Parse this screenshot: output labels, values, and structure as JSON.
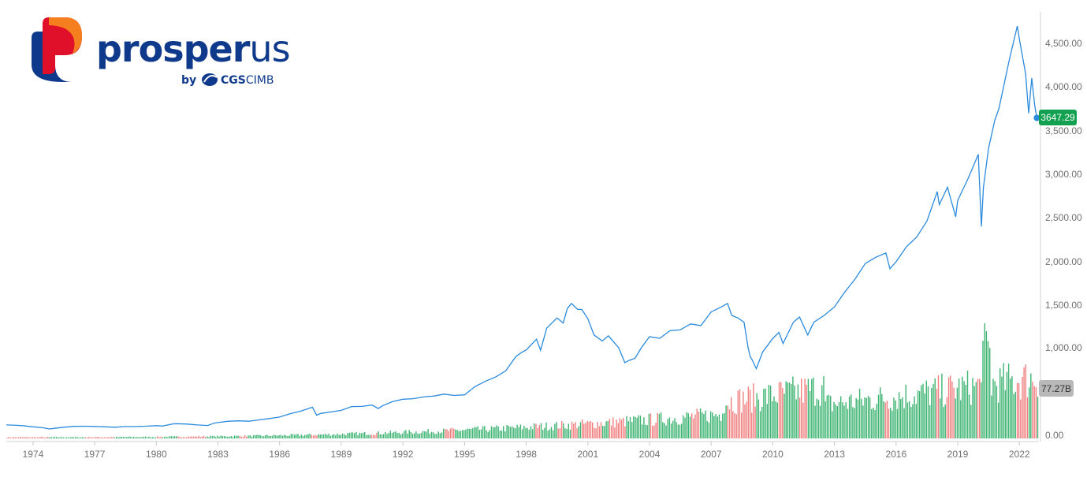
{
  "brand": {
    "name_part1": "prosper",
    "name_part2": "us",
    "by_label": "by",
    "partner_part1": "CGS",
    "partner_part2": "CIMB",
    "colors": {
      "navy": "#0f3a8c",
      "red": "#e0102a",
      "orange": "#f57e1f"
    }
  },
  "chart_data": {
    "type": "line",
    "colors": {
      "line": "#2a8ade",
      "volume_up": "#3cb371",
      "volume_down": "#f08080",
      "price_badge": "#12a150",
      "volume_badge": "#b8b8b8"
    },
    "price_axis": {
      "ylim": [
        0,
        4800
      ],
      "ticks": [
        "0.00",
        "1,000.00",
        "1,500.00",
        "2,000.00",
        "2,500.00",
        "3,000.00",
        "3,500.00",
        "4,000.00",
        "4,500.00"
      ],
      "tick_values": [
        0,
        1000,
        1500,
        2000,
        2500,
        3000,
        3500,
        4000,
        4500
      ]
    },
    "x_axis": {
      "range": [
        1972.7,
        2022.95
      ],
      "ticks": [
        "1974",
        "1977",
        "1980",
        "1983",
        "1986",
        "1989",
        "1992",
        "1995",
        "1998",
        "2001",
        "2004",
        "2007",
        "2010",
        "2013",
        "2016",
        "2019",
        "2022"
      ],
      "tick_values": [
        1974,
        1977,
        1980,
        1983,
        1986,
        1989,
        1992,
        1995,
        1998,
        2001,
        2004,
        2007,
        2010,
        2013,
        2016,
        2019,
        2022
      ]
    },
    "series": [
      {
        "values_x": [
          1972.7,
          1973.0,
          1973.5,
          1974.0,
          1974.5,
          1974.8,
          1975.0,
          1975.5,
          1976.0,
          1976.5,
          1977.0,
          1977.5,
          1978.0,
          1978.5,
          1979.0,
          1979.5,
          1980.0,
          1980.3,
          1980.8,
          1981.0,
          1981.5,
          1982.0,
          1982.5,
          1982.8,
          1983.0,
          1983.5,
          1984.0,
          1984.5,
          1985.0,
          1985.5,
          1986.0,
          1986.5,
          1987.0,
          1987.6,
          1987.8,
          1988.0,
          1988.5,
          1989.0,
          1989.5,
          1990.0,
          1990.5,
          1990.8,
          1991.0,
          1991.5,
          1992.0,
          1992.5,
          1993.0,
          1993.5,
          1994.0,
          1994.5,
          1995.0,
          1995.5,
          1996.0,
          1996.5,
          1997.0,
          1997.5,
          1997.8,
          1998.0,
          1998.5,
          1998.7,
          1999.0,
          1999.5,
          1999.8,
          2000.0,
          2000.2,
          2000.5,
          2000.7,
          2001.0,
          2001.3,
          2001.7,
          2002.0,
          2002.5,
          2002.8,
          2003.0,
          2003.3,
          2003.6,
          2004.0,
          2004.5,
          2005.0,
          2005.5,
          2006.0,
          2006.5,
          2007.0,
          2007.5,
          2007.8,
          2008.0,
          2008.3,
          2008.6,
          2008.8,
          2008.9,
          2009.0,
          2009.2,
          2009.5,
          2010.0,
          2010.3,
          2010.5,
          2011.0,
          2011.3,
          2011.7,
          2012.0,
          2012.5,
          2013.0,
          2013.5,
          2014.0,
          2014.5,
          2015.0,
          2015.5,
          2015.7,
          2016.0,
          2016.5,
          2017.0,
          2017.5,
          2018.0,
          2018.1,
          2018.5,
          2018.9,
          2019.0,
          2019.5,
          2020.0,
          2020.15,
          2020.25,
          2020.5,
          2020.8,
          2021.0,
          2021.5,
          2021.9,
          2022.0,
          2022.3,
          2022.45,
          2022.6,
          2022.75,
          2022.85
        ],
        "values_y": [
          118,
          116,
          110,
          96,
          86,
          72,
          78,
          92,
          102,
          104,
          101,
          96,
          92,
          100,
          100,
          104,
          110,
          105,
          130,
          132,
          128,
          118,
          112,
          138,
          145,
          160,
          165,
          160,
          176,
          191,
          208,
          246,
          274,
          321,
          229,
          250,
          267,
          285,
          328,
          330,
          345,
          305,
          336,
          385,
          412,
          418,
          438,
          448,
          470,
          455,
          462,
          555,
          615,
          665,
          735,
          900,
          950,
          975,
          1100,
          972,
          1230,
          1350,
          1290,
          1460,
          1520,
          1450,
          1450,
          1340,
          1150,
          1080,
          1140,
          1000,
          830,
          855,
          880,
          1000,
          1130,
          1110,
          1200,
          1210,
          1280,
          1260,
          1420,
          1480,
          1520,
          1380,
          1350,
          1300,
          1000,
          900,
          860,
          760,
          950,
          1110,
          1180,
          1050,
          1300,
          1360,
          1150,
          1300,
          1380,
          1480,
          1650,
          1800,
          1980,
          2050,
          2100,
          1920,
          2000,
          2170,
          2280,
          2460,
          2800,
          2650,
          2850,
          2510,
          2700,
          2950,
          3230,
          2400,
          2850,
          3300,
          3620,
          3750,
          4300,
          4700,
          4550,
          4150,
          3700,
          4100,
          3780,
          3647.29
        ]
      }
    ],
    "last_price": "3647.29",
    "last_volume": "77.27B"
  }
}
